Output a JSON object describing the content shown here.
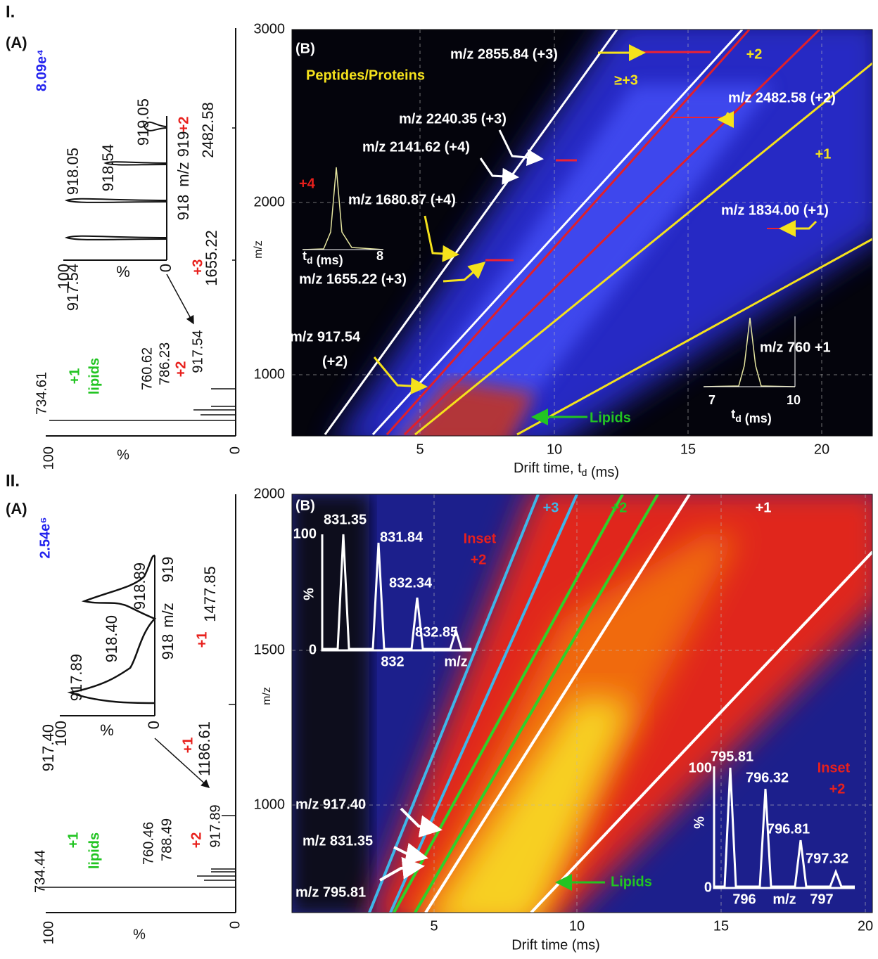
{
  "panel_1": {
    "label": "I.",
    "spectrum": {
      "label": "(A)",
      "intensity": "8.09e⁴",
      "axis_100": "100",
      "axis_pct": "%",
      "axis_0": "0",
      "inset": {
        "peaks": [
          "917.54",
          "918.05",
          "918.54",
          "919.05"
        ],
        "axis_100": "100",
        "axis_pct": "%",
        "axis_0": "0",
        "mz_918": "918",
        "mz_label": "m/z",
        "mz_919": "919"
      },
      "peaks": [
        "734.61",
        "760.62",
        "786.23",
        "917.54",
        "1655.22",
        "2482.58"
      ],
      "charge_plus1": "+1",
      "lipids": "lipids",
      "charge_917": "+2",
      "charge_1655": "+3",
      "charge_2482": "+2"
    },
    "mobility": {
      "label": "(B)",
      "y_label": "m/z",
      "y_ticks": [
        "1000",
        "2000",
        "3000"
      ],
      "x_ticks": [
        "5",
        "10",
        "15",
        "20"
      ],
      "x_label": "Drift time, t",
      "x_label_sub": "d",
      "x_label_unit": " (ms)",
      "class_label": "Peptides/Proteins",
      "charge_4": "+4",
      "charge_ge3": "≥+3",
      "charge_2": "+2",
      "charge_1": "+1",
      "lipids": "Lipids",
      "annotations": [
        "m/z 2855.84 (+3)",
        "m/z 2482.58 (+2)",
        "m/z 2240.35 (+3)",
        "m/z 2141.62 (+4)",
        "m/z 1834.00 (+1)",
        "m/z 1680.87 (+4)",
        "m/z 1655.22 (+3)",
        "m/z 917.54",
        "(+2)",
        "m/z 760 +1"
      ],
      "inset_left": {
        "x_label": "t",
        "x_label_sub": "d",
        "x_label_unit": " (ms)",
        "x_end": "8"
      },
      "inset_right": {
        "x_start": "7",
        "x_end": "10",
        "x_label": "t",
        "x_label_sub": "d",
        "x_label_unit": " (ms)"
      }
    }
  },
  "panel_2": {
    "label": "II.",
    "spectrum": {
      "label": "(A)",
      "intensity": "2.54e⁶",
      "axis_100": "100",
      "axis_pct": "%",
      "axis_0": "0",
      "inset": {
        "peaks": [
          "917.40",
          "917.89",
          "918.40",
          "918.89"
        ],
        "axis_100": "100",
        "axis_pct": "%",
        "axis_0": "0",
        "mz_918": "918",
        "mz_label": "m/z",
        "mz_919": "919"
      },
      "peaks": [
        "734.44",
        "760.46",
        "788.49",
        "917.89",
        "1186.61",
        "1477.85"
      ],
      "charge_plus1": "+1",
      "lipids": "lipids",
      "charge_917": "+2",
      "charge_1186": "+1",
      "charge_1477": "+1"
    },
    "mobility": {
      "label": "(B)",
      "y_label": "m/z",
      "y_ticks": [
        "1000",
        "1500",
        "2000"
      ],
      "x_ticks": [
        "5",
        "10",
        "15",
        "20"
      ],
      "x_label": "Drift time (ms)",
      "charge_3": "+3",
      "charge_2": "+2",
      "charge_1": "+1",
      "lipids": "Lipids",
      "annotations": [
        "m/z 917.40",
        "m/z 831.35",
        "m/z 795.81"
      ],
      "inset_top": {
        "peaks": [
          "831.35",
          "831.84",
          "832.34",
          "832.85"
        ],
        "y_100": "100",
        "y_pct": "%",
        "y_0": "0",
        "x_tick": "832",
        "x_label": "m/z",
        "title": "Inset",
        "charge": "+2"
      },
      "inset_bottom": {
        "peaks": [
          "795.81",
          "796.32",
          "796.81",
          "797.32"
        ],
        "y_100": "100",
        "y_pct": "%",
        "y_0": "0",
        "x_tick_1": "796",
        "x_label": "m/z",
        "x_tick_2": "797",
        "title": "Inset",
        "charge": "+2"
      }
    }
  }
}
